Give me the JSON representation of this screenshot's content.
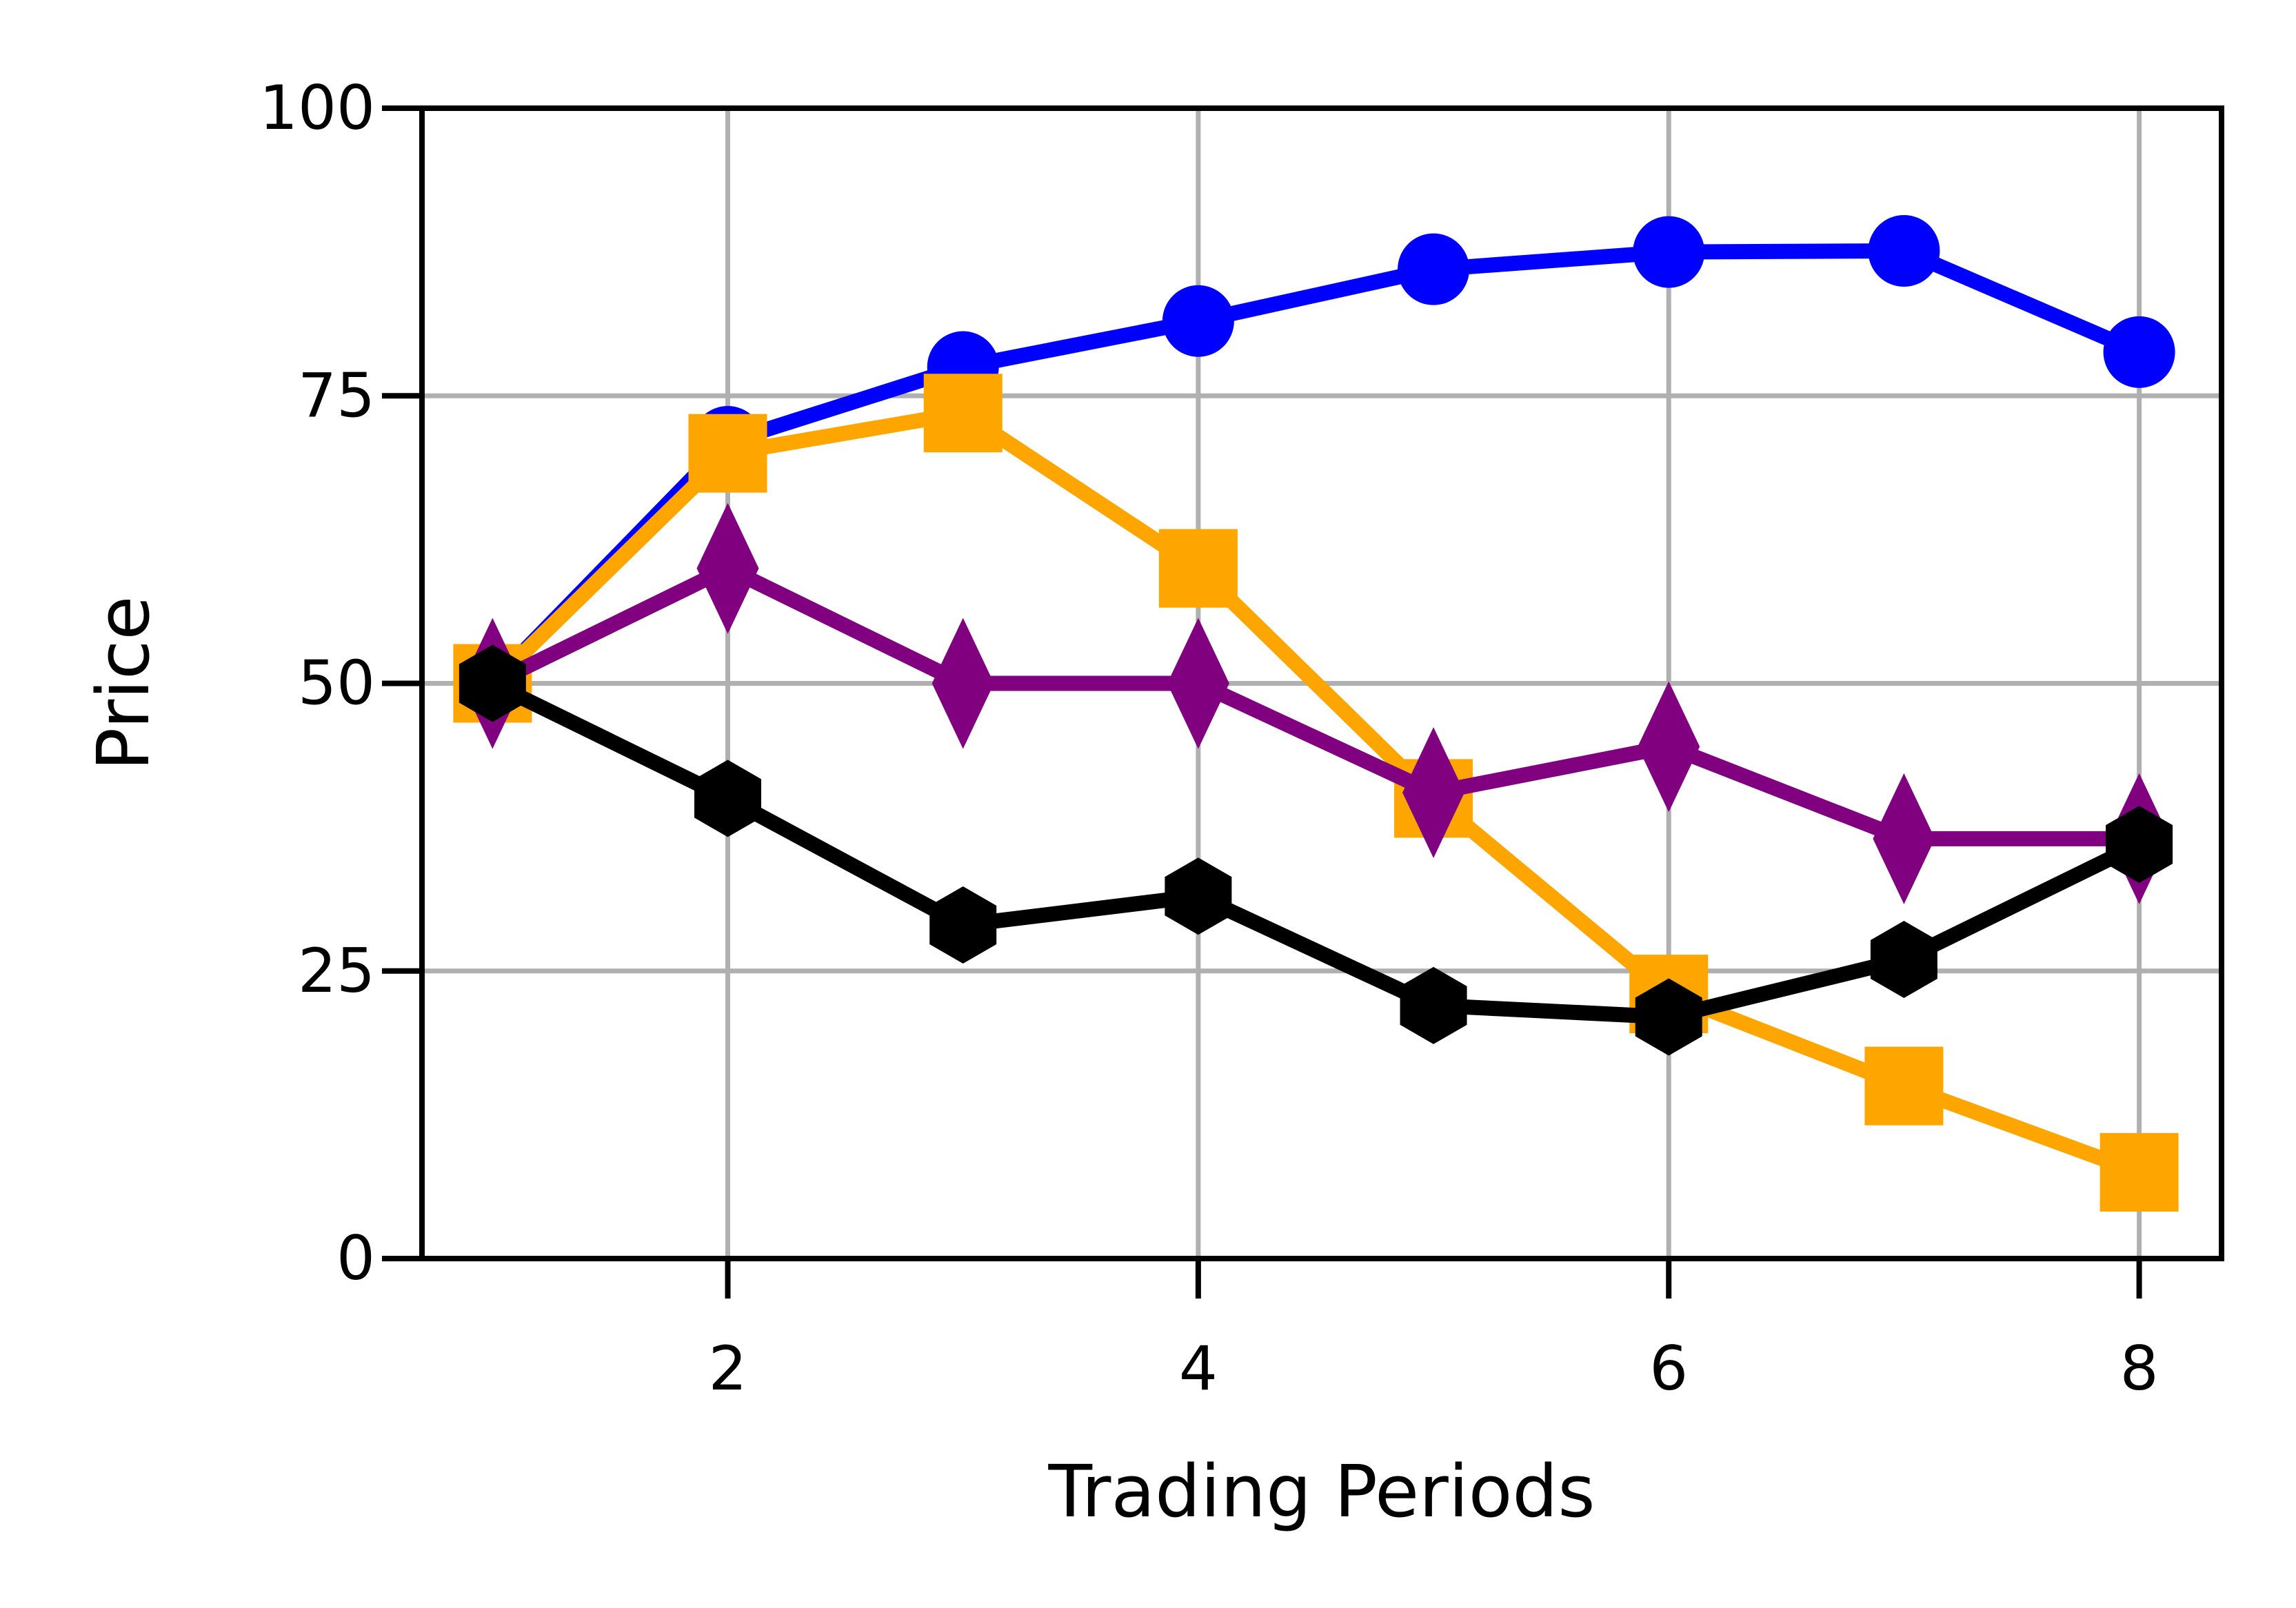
{
  "chart_data": {
    "type": "line",
    "title": "",
    "xlabel": "Trading Periods",
    "ylabel": "Price",
    "xlim": [
      0.7,
      8.35
    ],
    "ylim": [
      0,
      100
    ],
    "xticks": [
      2,
      4,
      6,
      8
    ],
    "yticks": [
      0,
      25,
      50,
      75,
      100
    ],
    "grid": true,
    "x": [
      1,
      2,
      3,
      4,
      5,
      6,
      7,
      8
    ],
    "series": [
      {
        "color": "#0000ff",
        "marker": "circle",
        "values": [
          50,
          71,
          77.5,
          81.5,
          86,
          87.5,
          87.6,
          78.8
        ]
      },
      {
        "color": "#ffa500",
        "marker": "square",
        "values": [
          50,
          70,
          73.5,
          60,
          40,
          23,
          15,
          7.5
        ]
      },
      {
        "color": "#800080",
        "marker": "thin_diamond",
        "values": [
          50,
          60,
          50,
          50,
          40.5,
          44.5,
          36.5,
          36.5
        ]
      },
      {
        "color": "#000000",
        "marker": "hexagon",
        "values": [
          50,
          40,
          29,
          31.5,
          22,
          21,
          26,
          36
        ]
      }
    ]
  }
}
